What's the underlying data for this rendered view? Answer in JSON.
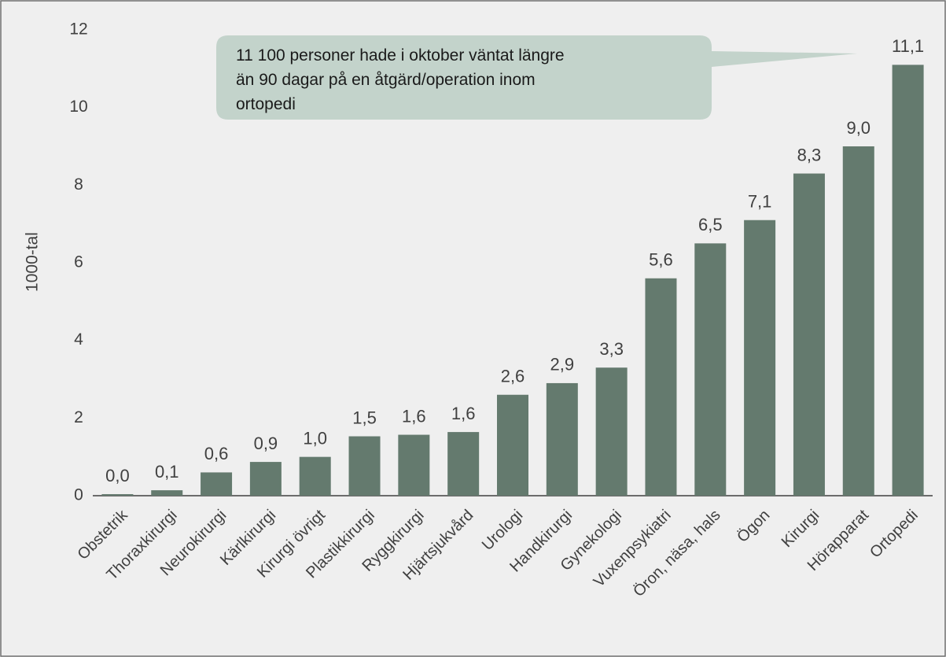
{
  "chart_data": {
    "type": "bar",
    "y_label": "1000-tal",
    "annotation": [
      "11 100 personer hade i oktober väntat längre",
      "än 90 dagar på en åtgärd/operation inom",
      "ortopedi"
    ],
    "categories": [
      "Obstetrik",
      "Thoraxkirurgi",
      "Neurokirurgi",
      "Kärlkirurgi",
      "Kirurgi övrigt",
      "Plastikkirurgi",
      "Ryggkirurgi",
      "Hjärtsjukvård",
      "Urologi",
      "Handkirurgi",
      "Gynekologi",
      "Vuxenpsykiatri",
      "Öron, näsa, hals",
      "Ögon",
      "Kirurgi",
      "Hörapparat",
      "Ortopedi"
    ],
    "values": [
      0.04,
      0.14,
      0.6,
      0.87,
      1.0,
      1.53,
      1.57,
      1.64,
      2.6,
      2.9,
      3.3,
      5.6,
      6.5,
      7.1,
      8.3,
      9.0,
      11.1
    ],
    "value_labels": [
      "0,0",
      "0,1",
      "0,6",
      "0,9",
      "1,0",
      "1,5",
      "1,6",
      "1,6",
      "2,6",
      "2,9",
      "3,3",
      "5,6",
      "6,5",
      "7,1",
      "8,3",
      "9,0",
      "11,1"
    ],
    "color": "#647a6e",
    "ylim": [
      0,
      12
    ],
    "yticks": [
      0,
      2,
      4,
      6,
      8,
      10,
      12
    ],
    "grid": false
  }
}
